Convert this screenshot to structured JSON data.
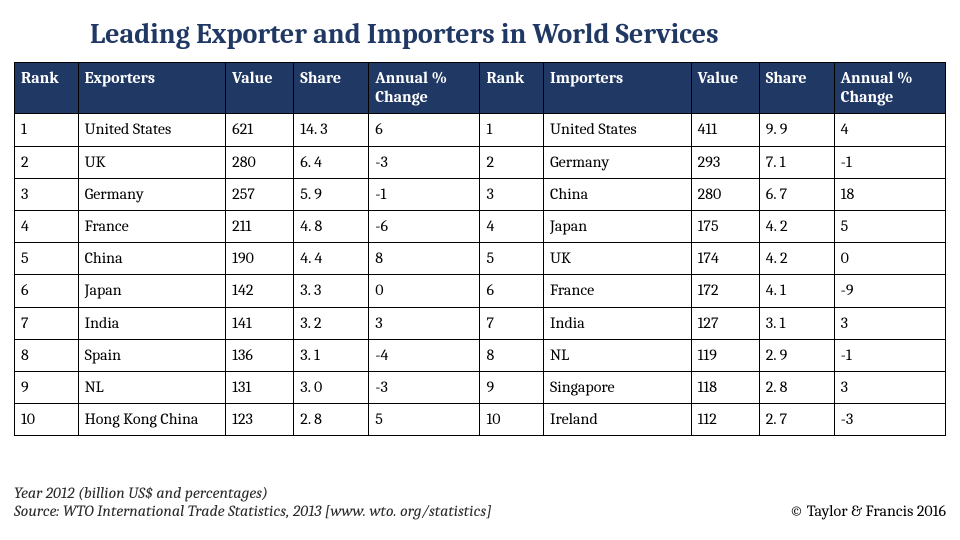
{
  "title": "Leading Exporter and Importers in World Services",
  "headers": {
    "rank": "Rank",
    "exporters": "Exporters",
    "value": "Value",
    "share": "Share",
    "change": "Annual % Change",
    "importers": "Importers"
  },
  "rows": [
    {
      "erank": "1",
      "exp": "United States",
      "eval": "621",
      "eshare": "14. 3",
      "echg": "6",
      "irank": "1",
      "imp": "United States",
      "ival": "411",
      "ishare": "9. 9",
      "ichg": "4"
    },
    {
      "erank": "2",
      "exp": "UK",
      "eval": "280",
      "eshare": "6. 4",
      "echg": "-3",
      "irank": "2",
      "imp": "Germany",
      "ival": "293",
      "ishare": "7. 1",
      "ichg": "-1"
    },
    {
      "erank": "3",
      "exp": "Germany",
      "eval": "257",
      "eshare": "5. 9",
      "echg": "-1",
      "irank": "3",
      "imp": "China",
      "ival": "280",
      "ishare": "6. 7",
      "ichg": "18"
    },
    {
      "erank": "4",
      "exp": "France",
      "eval": "211",
      "eshare": "4. 8",
      "echg": "-6",
      "irank": "4",
      "imp": "Japan",
      "ival": "175",
      "ishare": "4. 2",
      "ichg": "5"
    },
    {
      "erank": "5",
      "exp": "China",
      "eval": "190",
      "eshare": "4. 4",
      "echg": "8",
      "irank": "5",
      "imp": "UK",
      "ival": "174",
      "ishare": "4. 2",
      "ichg": "0"
    },
    {
      "erank": "6",
      "exp": "Japan",
      "eval": "142",
      "eshare": "3. 3",
      "echg": "0",
      "irank": "6",
      "imp": "France",
      "ival": "172",
      "ishare": "4. 1",
      "ichg": "-9"
    },
    {
      "erank": "7",
      "exp": "India",
      "eval": "141",
      "eshare": "3. 2",
      "echg": "3",
      "irank": "7",
      "imp": "India",
      "ival": "127",
      "ishare": "3. 1",
      "ichg": "3"
    },
    {
      "erank": "8",
      "exp": "Spain",
      "eval": "136",
      "eshare": "3. 1",
      "echg": "-4",
      "irank": "8",
      "imp": "NL",
      "ival": "119",
      "ishare": "2. 9",
      "ichg": "-1"
    },
    {
      "erank": "9",
      "exp": "NL",
      "eval": "131",
      "eshare": "3. 0",
      "echg": "-3",
      "irank": "9",
      "imp": "Singapore",
      "ival": "118",
      "ishare": "2. 8",
      "ichg": "3"
    },
    {
      "erank": "10",
      "exp": "Hong Kong China",
      "eval": "123",
      "eshare": "2. 8",
      "echg": "5",
      "irank": "10",
      "imp": "Ireland",
      "ival": "112",
      "ishare": "2. 7",
      "ichg": "-3"
    }
  ],
  "footer": {
    "line1": "Year 2012 (billion US$ and percentages)",
    "line2": "Source: WTO International Trade Statistics, 2013 [www. wto. org/statistics]",
    "copyright": "© Taylor & Francis 2016"
  },
  "colors": {
    "header_bg": "#203864",
    "header_fg": "#ffffff",
    "border": "#000000",
    "title": "#203864"
  }
}
